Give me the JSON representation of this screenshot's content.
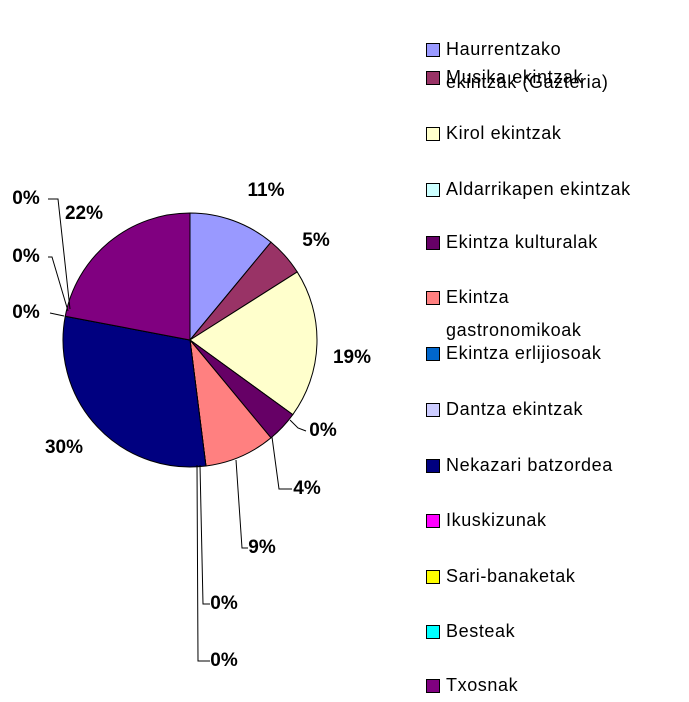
{
  "chart_data": {
    "type": "pie",
    "categories": [
      "Haurrentzako\nekintzak (Gazteria)",
      "Musika ekintzak",
      "Kirol ekintzak",
      "Aldarrikapen ekintzak",
      "Ekintza kulturalak",
      "Ekintza\ngastronomikoak",
      "Ekintza erlijiosoak",
      "Dantza ekintzak",
      "Nekazari batzordea",
      "Ikuskizunak",
      "Sari-banaketak",
      "Besteak",
      "Txosnak"
    ],
    "values": [
      11,
      5,
      19,
      0,
      4,
      9,
      0,
      0,
      30,
      0,
      0,
      0,
      22
    ],
    "value_labels": [
      "11%",
      "5%",
      "19%",
      "0%",
      "4%",
      "9%",
      "0%",
      "0%",
      "30%",
      "0%",
      "0%",
      "0%",
      "22%"
    ],
    "colors": [
      "#9999ff",
      "#993366",
      "#ffffcc",
      "#ccffff",
      "#660066",
      "#ff8080",
      "#0066cc",
      "#ccccff",
      "#000080",
      "#ff00ff",
      "#ffff00",
      "#00ffff",
      "#800080"
    ],
    "legend": "right"
  }
}
